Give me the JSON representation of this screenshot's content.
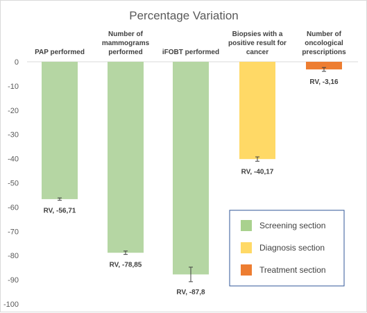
{
  "chart_data": {
    "type": "bar",
    "title": "Percentage Variation",
    "categories": [
      "PAP performed",
      "Number of mammograms performed",
      "iFOBT performed",
      "Biopsies with a positive result for cancer",
      "Number of oncological prescriptions"
    ],
    "category_lines": [
      [
        "PAP performed"
      ],
      [
        "Number of",
        "mammograms",
        "performed"
      ],
      [
        "iFOBT performed"
      ],
      [
        "Biopsies with a",
        "positive result for",
        "cancer"
      ],
      [
        "Number of",
        "oncological",
        "prescriptions"
      ]
    ],
    "values": [
      -56.71,
      -78.85,
      -87.8,
      -40.17,
      -3.16
    ],
    "error_bars": [
      0.5,
      0.7,
      3.0,
      0.9,
      0.8
    ],
    "data_labels": [
      "RV, -56,71",
      "RV, -78,85",
      "RV, -87,8",
      "RV, -40,17",
      "RV, -3,16"
    ],
    "bar_sections": [
      "Screening section",
      "Screening section",
      "Screening section",
      "Diagnosis section",
      "Treatment section"
    ],
    "yticks": [
      "0",
      "-10",
      "-20",
      "-30",
      "-40",
      "-50",
      "-60",
      "-70",
      "-80",
      "-90",
      "-100"
    ],
    "ylim": [
      -100,
      0
    ],
    "grid": false,
    "legend": {
      "position": "bottom-right",
      "entries": [
        {
          "label": "Screening section",
          "color": "#a9d18e"
        },
        {
          "label": "Diagnosis section",
          "color": "#ffd966"
        },
        {
          "label": "Treatment section",
          "color": "#ed7d31"
        }
      ]
    },
    "bar_opacity_colors": {
      "Screening section": "#b5d6a3",
      "Diagnosis section": "#ffd966",
      "Treatment section": "#ed7d31"
    }
  }
}
